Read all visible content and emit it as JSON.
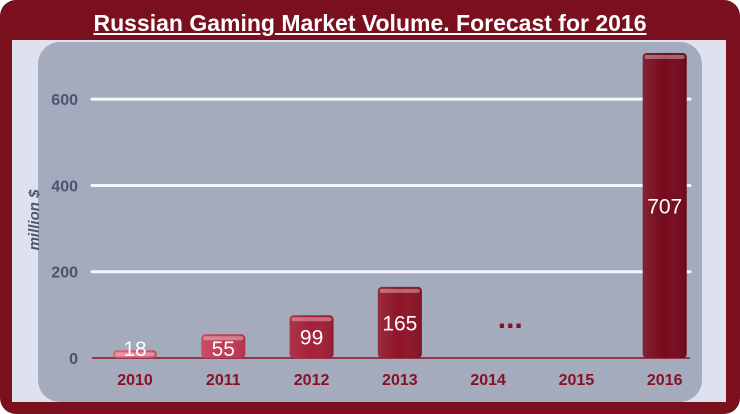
{
  "chart_data": {
    "type": "bar",
    "title": "Russian Gaming Market Volume. Forecast for 2016",
    "ylabel": "million $",
    "xlabel": "",
    "categories": [
      "2010",
      "2011",
      "2012",
      "2013",
      "2014",
      "2015",
      "2016"
    ],
    "values": [
      18,
      55,
      99,
      165,
      null,
      null,
      707
    ],
    "data_labels": [
      "18",
      "55",
      "99",
      "165",
      "",
      "",
      "707"
    ],
    "ylim": [
      0,
      707
    ],
    "yticks": [
      0,
      200,
      400,
      600
    ],
    "gap_marker": "...",
    "colors": {
      "frame": "#7a0f1e",
      "panel": "#a3abbd",
      "background": "#dfe2ee",
      "bars": [
        "#d8556b",
        "#c23a53",
        "#a51f37",
        "#8e1527",
        "#8e1527",
        "#8e1527",
        "#760a1c"
      ],
      "axis_text": "#4a5470",
      "category_text": "#8a1024",
      "gap_marker": "#8a1024"
    },
    "grid": true,
    "legend": "none"
  }
}
